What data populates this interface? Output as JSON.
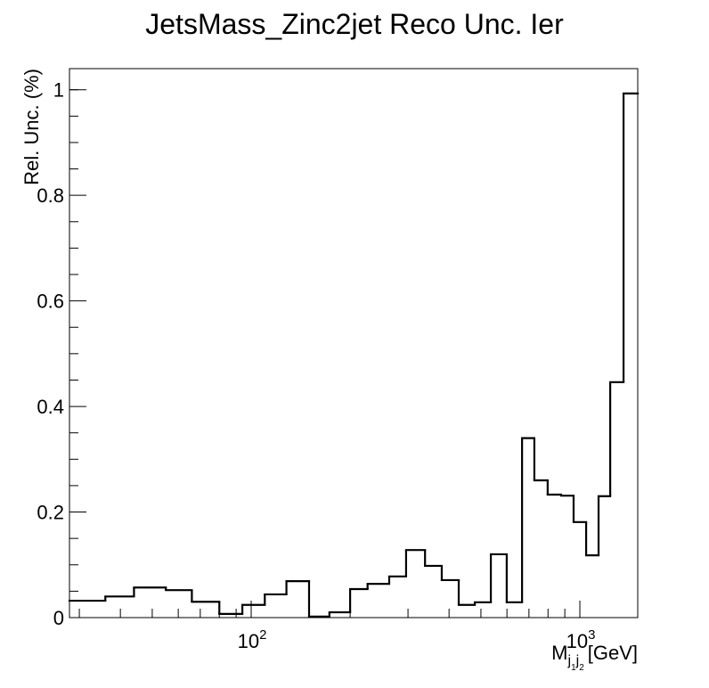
{
  "chart_data": {
    "type": "histogram",
    "title": "JetsMass_Zinc2jet Reco Unc. Ier",
    "ylabel": "Rel. Unc. (%)",
    "xlabel": {
      "symbol": "M",
      "subscript": [
        "j",
        "1",
        "j",
        "2"
      ],
      "unit": "[GeV]"
    },
    "xscale": "log",
    "bins": [
      28,
      36,
      44,
      55,
      66,
      80,
      94,
      110,
      128,
      150,
      173,
      200,
      226,
      263,
      296,
      338,
      380,
      428,
      479,
      536,
      599,
      667,
      727,
      798,
      877,
      957,
      1045,
      1140,
      1237,
      1358,
      1500
    ],
    "values": [
      0.032,
      0.04,
      0.057,
      0.052,
      0.03,
      0.007,
      0.024,
      0.044,
      0.069,
      0.002,
      0.01,
      0.054,
      0.064,
      0.078,
      0.128,
      0.098,
      0.071,
      0.024,
      0.029,
      0.12,
      0.029,
      0.34,
      0.26,
      0.233,
      0.231,
      0.181,
      0.118,
      0.23,
      0.446,
      0.993
    ],
    "color": "#000000",
    "xlim": [
      28,
      1500
    ],
    "ylim": [
      0,
      1.04
    ],
    "xticks": [
      {
        "value": 100,
        "label": "10",
        "exponent": "2"
      },
      {
        "value": 1000,
        "label": "10",
        "exponent": "3"
      }
    ],
    "xminor_ticks": [
      30,
      40,
      50,
      60,
      70,
      80,
      90,
      200,
      300,
      400,
      500,
      600,
      700,
      800,
      900
    ],
    "yticks": [
      0,
      0.2,
      0.4,
      0.6,
      0.8,
      1
    ],
    "yminor_ticks": [
      0.05,
      0.1,
      0.15,
      0.25,
      0.3,
      0.35,
      0.45,
      0.5,
      0.55,
      0.65,
      0.7,
      0.75,
      0.85,
      0.9,
      0.95,
      1.0
    ]
  }
}
